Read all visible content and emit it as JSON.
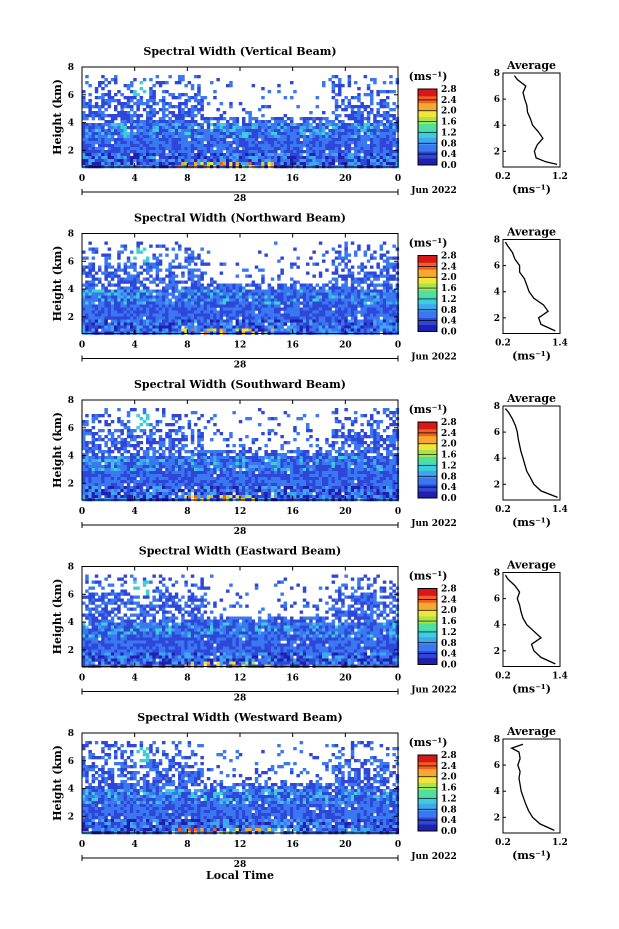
{
  "xlabel": "Local Time",
  "colorbar_unit": "(ms⁻¹)",
  "avg_unit": "(ms⁻¹)",
  "avg_title": "Average",
  "date_day": "28",
  "date_month": "Jun 2022",
  "colors": {
    "colormap": [
      "#ffffff",
      "#2020b0",
      "#2f47d8",
      "#3a78f2",
      "#40a6f2",
      "#3ccfd8",
      "#4fe0a0",
      "#a8e44c",
      "#f2e43a",
      "#f8a830",
      "#f06020",
      "#d81818"
    ],
    "background": "#ffffff"
  },
  "chart_data": [
    {
      "type": "heatmap",
      "title": "Spectral Width (Vertical Beam)",
      "ylabel": "Height (km)",
      "x_ticks": [
        "0",
        "4",
        "8",
        "12",
        "16",
        "20",
        "0"
      ],
      "y_ticks": [
        "2",
        "4",
        "6",
        "8"
      ],
      "xlim": [
        0,
        24
      ],
      "ylim": [
        0.8,
        8.0
      ],
      "colorbar_ticks": [
        "0.0",
        "0.4",
        "0.8",
        "1.2",
        "1.6",
        "2.0",
        "2.4",
        "2.8"
      ],
      "clim": [
        0.0,
        2.8
      ],
      "average_profile": {
        "xticks": [
          "0.2",
          "1.2"
        ],
        "xlim": [
          0.2,
          1.2
        ],
        "ylim": [
          0.8,
          8.0
        ],
        "height": [
          1.0,
          1.2,
          1.5,
          2.0,
          2.5,
          3.0,
          3.5,
          4.0,
          4.5,
          5.0,
          5.5,
          6.0,
          6.5,
          7.0,
          7.5,
          7.8
        ],
        "width": [
          1.15,
          0.95,
          0.78,
          0.75,
          0.8,
          0.9,
          0.82,
          0.72,
          0.68,
          0.63,
          0.62,
          0.58,
          0.55,
          0.6,
          0.45,
          0.4
        ]
      }
    },
    {
      "type": "heatmap",
      "title": "Spectral Width (Northward Beam)",
      "ylabel": "Height (km)",
      "x_ticks": [
        "0",
        "4",
        "8",
        "12",
        "16",
        "20",
        "0"
      ],
      "y_ticks": [
        "2",
        "4",
        "6",
        "8"
      ],
      "xlim": [
        0,
        24
      ],
      "ylim": [
        0.8,
        8.0
      ],
      "colorbar_ticks": [
        "0.0",
        "0.4",
        "0.8",
        "1.2",
        "1.6",
        "2.0",
        "2.4",
        "2.8"
      ],
      "clim": [
        0.0,
        2.8
      ],
      "average_profile": {
        "xticks": [
          "0.2",
          "1.4"
        ],
        "xlim": [
          0.2,
          1.4
        ],
        "ylim": [
          0.8,
          8.0
        ],
        "height": [
          1.0,
          1.5,
          2.0,
          2.5,
          3.0,
          3.5,
          4.0,
          4.5,
          5.0,
          5.5,
          6.0,
          6.5,
          7.0,
          7.5,
          7.8
        ],
        "width": [
          1.3,
          1.0,
          0.95,
          1.15,
          1.05,
          0.85,
          0.75,
          0.7,
          0.65,
          0.55,
          0.55,
          0.45,
          0.4,
          0.3,
          0.25
        ]
      }
    },
    {
      "type": "heatmap",
      "title": "Spectral Width (Southward Beam)",
      "ylabel": "Height (km)",
      "x_ticks": [
        "0",
        "4",
        "8",
        "12",
        "16",
        "20",
        "0"
      ],
      "y_ticks": [
        "2",
        "4",
        "6",
        "8"
      ],
      "xlim": [
        0,
        24
      ],
      "ylim": [
        0.8,
        8.0
      ],
      "colorbar_ticks": [
        "0.0",
        "0.4",
        "0.8",
        "1.2",
        "1.6",
        "2.0",
        "2.4",
        "2.8"
      ],
      "clim": [
        0.0,
        2.8
      ],
      "average_profile": {
        "xticks": [
          "0.2",
          "1.4"
        ],
        "xlim": [
          0.2,
          1.4
        ],
        "ylim": [
          0.8,
          8.0
        ],
        "height": [
          1.0,
          1.5,
          2.0,
          2.5,
          3.0,
          3.5,
          4.0,
          4.5,
          5.0,
          5.5,
          6.0,
          6.5,
          7.0,
          7.5,
          7.8
        ],
        "width": [
          1.35,
          1.0,
          0.85,
          0.78,
          0.7,
          0.66,
          0.62,
          0.58,
          0.55,
          0.52,
          0.5,
          0.46,
          0.4,
          0.32,
          0.25
        ]
      }
    },
    {
      "type": "heatmap",
      "title": "Spectral Width (Eastward Beam)",
      "ylabel": "Height (km)",
      "x_ticks": [
        "0",
        "4",
        "8",
        "12",
        "16",
        "20",
        "0"
      ],
      "y_ticks": [
        "2",
        "4",
        "6",
        "8"
      ],
      "xlim": [
        0,
        24
      ],
      "ylim": [
        0.8,
        8.0
      ],
      "colorbar_ticks": [
        "0.0",
        "0.4",
        "0.8",
        "1.2",
        "1.6",
        "2.0",
        "2.4",
        "2.8"
      ],
      "clim": [
        0.0,
        2.8
      ],
      "average_profile": {
        "xticks": [
          "0.2",
          "1.4"
        ],
        "xlim": [
          0.2,
          1.4
        ],
        "ylim": [
          0.8,
          8.0
        ],
        "height": [
          1.0,
          1.5,
          2.0,
          2.5,
          3.0,
          3.5,
          4.0,
          4.5,
          5.0,
          5.5,
          6.0,
          6.5,
          7.0,
          7.5,
          7.8
        ],
        "width": [
          1.3,
          1.0,
          0.85,
          0.8,
          1.0,
          0.85,
          0.7,
          0.62,
          0.58,
          0.55,
          0.5,
          0.55,
          0.45,
          0.3,
          0.25
        ]
      }
    },
    {
      "type": "heatmap",
      "title": "Spectral Width (Westward Beam)",
      "ylabel": "Height (km)",
      "x_ticks": [
        "0",
        "4",
        "8",
        "12",
        "16",
        "20",
        "0"
      ],
      "y_ticks": [
        "2",
        "4",
        "6",
        "8"
      ],
      "xlim": [
        0,
        24
      ],
      "ylim": [
        0.8,
        8.0
      ],
      "colorbar_ticks": [
        "0.0",
        "0.4",
        "0.8",
        "1.2",
        "1.6",
        "2.0",
        "2.4",
        "2.8"
      ],
      "clim": [
        0.0,
        2.8
      ],
      "average_profile": {
        "xticks": [
          "0.2",
          "1.2"
        ],
        "xlim": [
          0.2,
          1.2
        ],
        "ylim": [
          0.8,
          8.0
        ],
        "height": [
          1.0,
          1.5,
          2.0,
          2.5,
          3.0,
          3.5,
          4.0,
          4.5,
          5.0,
          5.5,
          6.0,
          6.5,
          7.0,
          7.3,
          7.6
        ],
        "width": [
          1.1,
          0.85,
          0.72,
          0.65,
          0.6,
          0.56,
          0.52,
          0.5,
          0.48,
          0.5,
          0.46,
          0.5,
          0.48,
          0.35,
          0.55
        ]
      }
    }
  ]
}
